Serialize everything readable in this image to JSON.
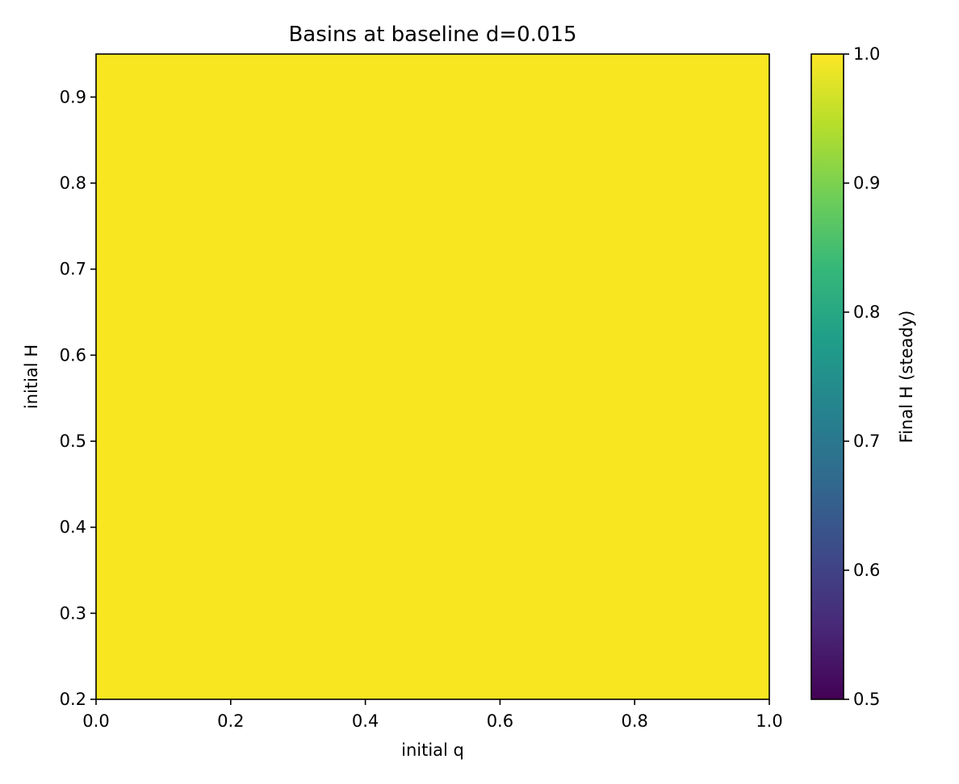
{
  "chart_data": {
    "type": "heatmap",
    "title": "Basins at baseline d=0.015",
    "xlabel": "initial q",
    "ylabel": "initial H",
    "xlim": [
      0.0,
      1.0
    ],
    "ylim": [
      0.2,
      0.95
    ],
    "x_ticks": [
      0.0,
      0.2,
      0.4,
      0.6,
      0.8,
      1.0
    ],
    "x_tick_labels": [
      "0.0",
      "0.2",
      "0.4",
      "0.6",
      "0.8",
      "1.0"
    ],
    "y_ticks": [
      0.2,
      0.3,
      0.4,
      0.5,
      0.6,
      0.7,
      0.8,
      0.9
    ],
    "y_tick_labels": [
      "0.2",
      "0.3",
      "0.4",
      "0.5",
      "0.6",
      "0.7",
      "0.8",
      "0.9"
    ],
    "value": 1.0,
    "colormap": "viridis",
    "colorbar": {
      "label": "Final H (steady)",
      "range": [
        0.5,
        1.0
      ],
      "ticks": [
        0.5,
        0.6,
        0.7,
        0.8,
        0.9,
        1.0
      ],
      "tick_labels": [
        "0.5",
        "0.6",
        "0.7",
        "0.8",
        "0.9",
        "1.0"
      ],
      "stops": [
        "#440154",
        "#482878",
        "#3e4989",
        "#31688e",
        "#26828e",
        "#1f9e89",
        "#35b779",
        "#6ece58",
        "#b5de2b",
        "#fde725"
      ]
    },
    "heatmap_color": "#f8e621"
  }
}
